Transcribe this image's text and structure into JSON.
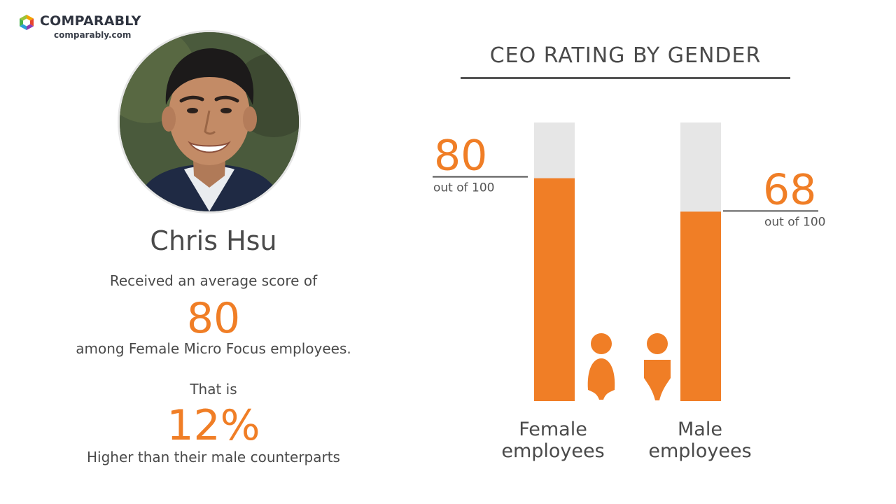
{
  "brand": {
    "name": "COMPARABLY",
    "url": "comparably.com",
    "colors": {
      "orange": "#f07e26",
      "track": "#e6e6e6",
      "text": "#4a4a4a"
    }
  },
  "profile": {
    "name": "Chris Hsu",
    "received_text": "Received an average score of",
    "score": "80",
    "among_text": "among Female Micro Focus employees.",
    "that_is_text": "That is",
    "percent": "12%",
    "higher_text": "Higher than their male counterparts"
  },
  "chart_data": {
    "type": "bar",
    "title": "CEO RATING BY GENDER",
    "ylim": [
      0,
      100
    ],
    "categories": [
      "Female employees",
      "Male employees"
    ],
    "category_lines": [
      [
        "Female",
        "employees"
      ],
      [
        "Male",
        "employees"
      ]
    ],
    "values": [
      80,
      68
    ],
    "value_labels": [
      "80",
      "68"
    ],
    "value_suffix": "out of 100",
    "icons": [
      "female-person-icon",
      "male-person-icon"
    ],
    "grid": false,
    "legend": "none"
  }
}
